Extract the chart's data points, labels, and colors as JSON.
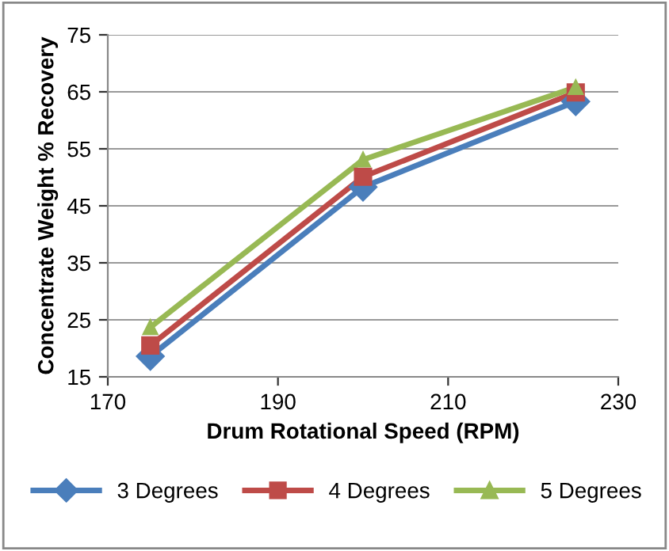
{
  "chart_data": {
    "type": "line",
    "xlabel": "Drum Rotational Speed (RPM)",
    "ylabel": "Concentrate Weight % Recovery",
    "x": [
      175,
      200,
      225
    ],
    "series": [
      {
        "name": "3 Degrees",
        "color": "#4a7ebb",
        "marker": "diamond",
        "values": [
          18.6,
          48.3,
          63.3
        ]
      },
      {
        "name": "4 Degrees",
        "color": "#be4b48",
        "marker": "square",
        "values": [
          20.5,
          50.1,
          64.9
        ]
      },
      {
        "name": "5 Degrees",
        "color": "#98b954",
        "marker": "triangle",
        "values": [
          23.7,
          53.1,
          65.8
        ]
      }
    ],
    "xlim": [
      170,
      230
    ],
    "xticks": [
      170,
      190,
      210,
      230
    ],
    "ylim": [
      15,
      75
    ],
    "yticks": [
      15,
      25,
      35,
      45,
      55,
      65,
      75
    ],
    "grid": "y",
    "legend": "bottom",
    "line_style": "solid"
  }
}
